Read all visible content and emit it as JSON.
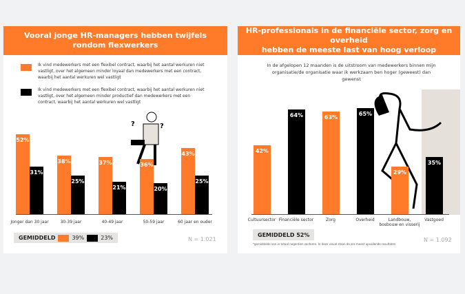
{
  "left": {
    "title_line1": "Vooral jonge HR-managers hebben twijfels",
    "title_line2": "rondom flexwerkers",
    "legend": [
      {
        "text": "Ik vind medewerkers met een flexibel contract, waarbij het aantal werkuren niet vastligt, over het algemeen minder loyaal dan medewerkers met een contract, waarbij het aantal werkuren wel vastligt",
        "color": "#ff7a29"
      },
      {
        "text": "Ik vind medewerkers met een flexibel contract, waarbij het aantal werkuren niet vastligt, over het algemeen minder productief dan medewerkers met een contract, waarbij het aantal werkuren wel vastligt",
        "color": "#000000"
      }
    ],
    "avg_label": "GEMIDDELD",
    "avg_orange": "39%",
    "avg_black": "23%",
    "n": "N = 1.021"
  },
  "right": {
    "title_line1": "HR-professionals in de financiële sector, zorg en overheid",
    "title_line2": "hebben de meeste last van hoog verloop",
    "subtitle": "In de afgelopen 12 maanden is de uitstroom van medewerkers binnen mijn organisatie/de organisatie waar ik werkzaam ben hoger (geweest) dan gewenst",
    "avg_label": "GEMIDDELD 52%",
    "n": "N = 1.092",
    "footnote": "*gemiddelde van in totaal negentien sectoren. In deze visual staan de zes meest opvallende resultaten"
  },
  "chart_data": [
    {
      "type": "bar",
      "title": "Vooral jonge HR-managers hebben twijfels rondom flexwerkers",
      "categories": [
        "Jonger dan 30 jaar",
        "30-39 jaar",
        "40-49 jaar",
        "50-59 jaar",
        "60 jaar en ouder"
      ],
      "series": [
        {
          "name": "minder loyaal",
          "color": "#ff7a29",
          "values": [
            52,
            38,
            37,
            36,
            43
          ],
          "labels": [
            "52%",
            "38%",
            "37%",
            "36%",
            "43%"
          ]
        },
        {
          "name": "minder productief",
          "color": "#000000",
          "values": [
            31,
            25,
            21,
            20,
            25
          ],
          "labels": [
            "31%",
            "25%",
            "21%",
            "20%",
            "25%"
          ]
        }
      ],
      "ylim": [
        0,
        60
      ]
    },
    {
      "type": "bar",
      "title": "HR-professionals in de financiële sector, zorg en overheid hebben de meeste last van hoog verloop",
      "categories": [
        "Cultuursector",
        "Financiële sector",
        "Zorg",
        "Overheid",
        "Landbouw, bosbouw en visserij",
        "Vastgoed"
      ],
      "values": [
        42,
        64,
        63,
        65,
        29,
        35
      ],
      "labels": [
        "42%",
        "64%",
        "63%",
        "65%",
        "29%",
        "35%"
      ],
      "colors": [
        "#ff7a29",
        "#000000",
        "#ff7a29",
        "#000000",
        "#ff7a29",
        "#000000"
      ],
      "ylim": [
        0,
        70
      ]
    }
  ]
}
